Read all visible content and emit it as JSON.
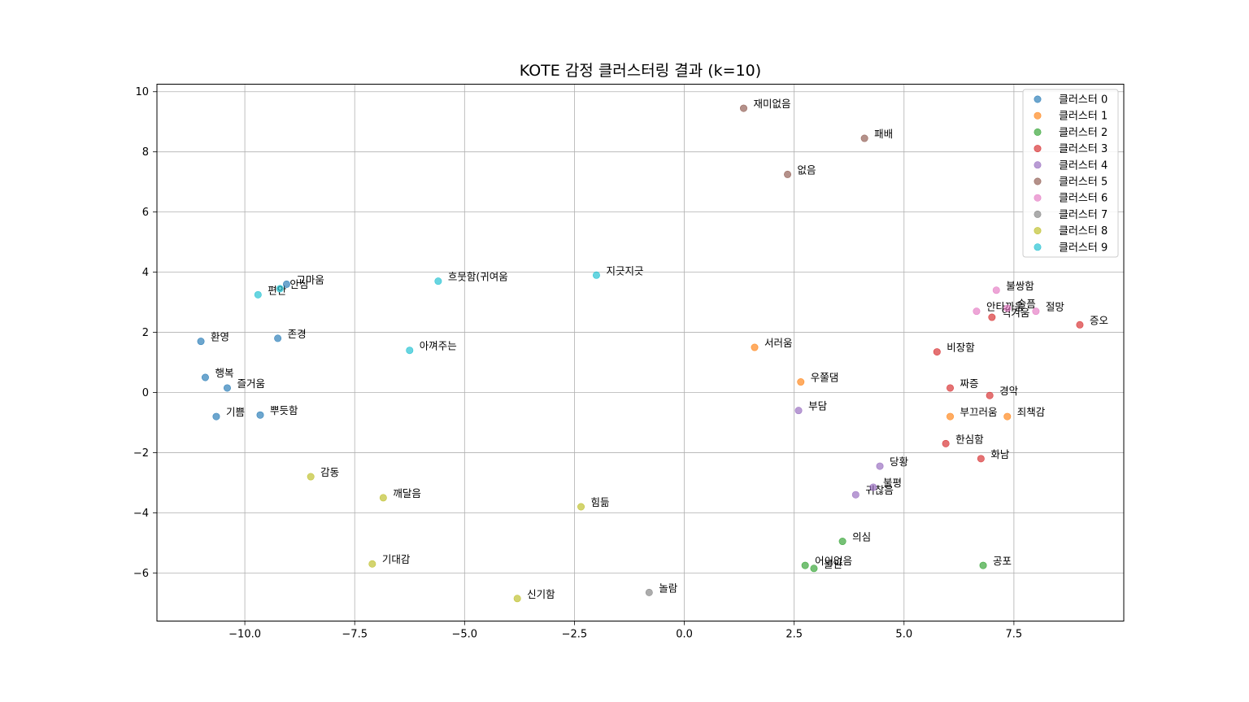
{
  "chart_data": {
    "type": "scatter",
    "title": "KOTE 감정 클러스터링 결과 (k=10)",
    "xlabel": "",
    "ylabel": "",
    "xlim": [
      -12.0,
      10.0
    ],
    "ylim": [
      -7.6,
      10.25
    ],
    "xticks": [
      -10.0,
      -7.5,
      -5.0,
      -2.5,
      0.0,
      2.5,
      5.0,
      7.5
    ],
    "xtick_labels": [
      "−10.0",
      "−7.5",
      "−5.0",
      "−2.5",
      "0.0",
      "2.5",
      "5.0",
      "7.5"
    ],
    "yticks": [
      -6,
      -4,
      -2,
      0,
      2,
      4,
      6,
      8,
      10
    ],
    "ytick_labels": [
      "−6",
      "−4",
      "−2",
      "0",
      "2",
      "4",
      "6",
      "8",
      "10"
    ],
    "grid": true,
    "legend": "top-right",
    "series": [
      {
        "name": "클러스터 0",
        "color": "#1f77b4",
        "points": [
          {
            "label": "고마움",
            "x": -9.05,
            "y": 3.6
          },
          {
            "label": "환영",
            "x": -11.0,
            "y": 1.7
          },
          {
            "label": "존경",
            "x": -9.25,
            "y": 1.8
          },
          {
            "label": "행복",
            "x": -10.9,
            "y": 0.5
          },
          {
            "label": "즐거움",
            "x": -10.4,
            "y": 0.15
          },
          {
            "label": "기쁨",
            "x": -10.65,
            "y": -0.8
          },
          {
            "label": "뿌듯함",
            "x": -9.65,
            "y": -0.75
          }
        ]
      },
      {
        "name": "클러스터 1",
        "color": "#ff7f0e",
        "points": [
          {
            "label": "서러움",
            "x": 1.6,
            "y": 1.5
          },
          {
            "label": "우쭐댐",
            "x": 2.65,
            "y": 0.35
          },
          {
            "label": "부끄러움",
            "x": 6.05,
            "y": -0.8
          },
          {
            "label": "죄책감",
            "x": 7.35,
            "y": -0.8
          }
        ]
      },
      {
        "name": "클러스터 2",
        "color": "#2ca02c",
        "points": [
          {
            "label": "의심",
            "x": 3.6,
            "y": -4.95
          },
          {
            "label": "어이없음",
            "x": 2.75,
            "y": -5.75
          },
          {
            "label": "불안",
            "x": 2.95,
            "y": -5.85
          },
          {
            "label": "공포",
            "x": 6.8,
            "y": -5.75
          }
        ]
      },
      {
        "name": "클러스터 3",
        "color": "#d62728",
        "points": [
          {
            "label": "증오",
            "x": 9.0,
            "y": 2.25
          },
          {
            "label": "역겨움",
            "x": 7.0,
            "y": 2.5
          },
          {
            "label": "비장함",
            "x": 5.75,
            "y": 1.35
          },
          {
            "label": "짜증",
            "x": 6.05,
            "y": 0.15
          },
          {
            "label": "경악",
            "x": 6.95,
            "y": -0.1
          },
          {
            "label": "한심함",
            "x": 5.95,
            "y": -1.7
          },
          {
            "label": "화남",
            "x": 6.75,
            "y": -2.2
          }
        ]
      },
      {
        "name": "클러스터 4",
        "color": "#9467bd",
        "points": [
          {
            "label": "부담",
            "x": 2.6,
            "y": -0.6
          },
          {
            "label": "당황",
            "x": 4.45,
            "y": -2.45
          },
          {
            "label": "불평",
            "x": 4.3,
            "y": -3.15
          },
          {
            "label": "귀찮음",
            "x": 3.9,
            "y": -3.4
          }
        ]
      },
      {
        "name": "클러스터 5",
        "color": "#8c564b",
        "points": [
          {
            "label": "재미없음",
            "x": 1.35,
            "y": 9.45
          },
          {
            "label": "패배",
            "x": 4.1,
            "y": 8.45
          },
          {
            "label": "없음",
            "x": 2.35,
            "y": 7.25
          }
        ]
      },
      {
        "name": "클러스터 6",
        "color": "#e377c2",
        "points": [
          {
            "label": "불쌍함",
            "x": 7.1,
            "y": 3.4
          },
          {
            "label": "슬픔",
            "x": 7.35,
            "y": 2.8
          },
          {
            "label": "안타까움",
            "x": 6.65,
            "y": 2.7
          },
          {
            "label": "절망",
            "x": 8.0,
            "y": 2.7
          }
        ]
      },
      {
        "name": "클러스터 7",
        "color": "#7f7f7f",
        "points": [
          {
            "label": "놀람",
            "x": -0.8,
            "y": -6.65
          }
        ]
      },
      {
        "name": "클러스터 8",
        "color": "#bcbd22",
        "points": [
          {
            "label": "감동",
            "x": -8.5,
            "y": -2.8
          },
          {
            "label": "깨달음",
            "x": -6.85,
            "y": -3.5
          },
          {
            "label": "힘듦",
            "x": -2.35,
            "y": -3.8
          },
          {
            "label": "기대감",
            "x": -7.1,
            "y": -5.7
          },
          {
            "label": "신기함",
            "x": -3.8,
            "y": -6.85
          }
        ]
      },
      {
        "name": "클러스터 9",
        "color": "#17becf",
        "points": [
          {
            "label": "안심",
            "x": -9.2,
            "y": 3.45
          },
          {
            "label": "편안",
            "x": -9.7,
            "y": 3.25
          },
          {
            "label": "흐뭇함(귀여움",
            "x": -5.6,
            "y": 3.7
          },
          {
            "label": "지긋지긋",
            "x": -2.0,
            "y": 3.9
          },
          {
            "label": "아껴주는",
            "x": -6.25,
            "y": 1.4
          }
        ]
      }
    ]
  }
}
